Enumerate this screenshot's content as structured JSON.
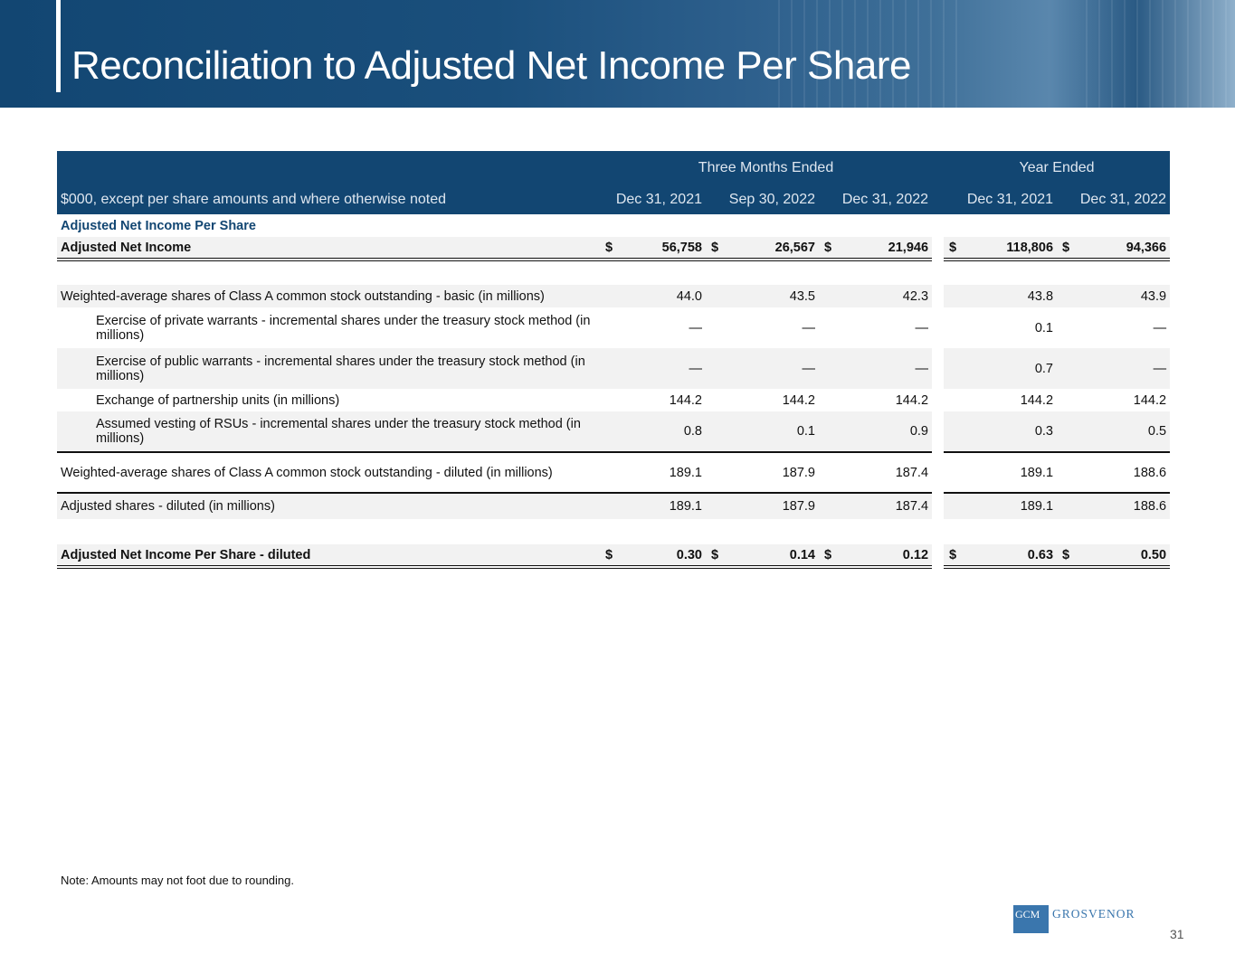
{
  "title": "Reconciliation to Adjusted Net Income Per Share",
  "header": {
    "group1": "Three Months Ended",
    "group2": "Year Ended",
    "unit_label": "$000, except per share amounts and where otherwise noted",
    "columns": [
      "Dec 31, 2021",
      "Sep 30, 2022",
      "Dec 31, 2022",
      "Dec 31, 2021",
      "Dec 31, 2022"
    ]
  },
  "section": "Adjusted Net Income Per Share",
  "rows": [
    {
      "label": "Adjusted Net Income",
      "values": [
        "56,758",
        "26,567",
        "21,946",
        "118,806",
        "94,366"
      ],
      "currency": "$",
      "bold": true,
      "shade": true,
      "border": "dbl",
      "h": "r1"
    },
    {
      "spacer": true
    },
    {
      "label": "Weighted-average shares of Class A common stock outstanding - basic (in millions)",
      "values": [
        "44.0",
        "43.5",
        "42.3",
        "43.8",
        "43.9"
      ],
      "shade": true,
      "h": "r1"
    },
    {
      "label": "Exercise of private warrants - incremental shares under the treasury stock method (in millions)",
      "values": [
        "—",
        "—",
        "—",
        "0.1",
        "—"
      ],
      "indent": true,
      "h": "r2"
    },
    {
      "label": "Exercise of public warrants - incremental shares under the treasury stock method (in millions)",
      "values": [
        "—",
        "—",
        "—",
        "0.7",
        "—"
      ],
      "indent": true,
      "shade": true,
      "h": "r2"
    },
    {
      "label": "Exchange of partnership units (in millions)",
      "values": [
        "144.2",
        "144.2",
        "144.2",
        "144.2",
        "144.2"
      ],
      "indent": true,
      "h": "r1"
    },
    {
      "label": "Assumed vesting of RSUs - incremental shares under the treasury stock method (in millions)",
      "values": [
        "0.8",
        "0.1",
        "0.9",
        "0.3",
        "0.5"
      ],
      "indent": true,
      "shade": true,
      "border": "sgl",
      "h": "r2"
    },
    {
      "label": "Weighted-average shares of Class A common stock outstanding - diluted (in millions)",
      "values": [
        "189.1",
        "187.9",
        "187.4",
        "189.1",
        "188.6"
      ],
      "border": "sgl",
      "h": "r2"
    },
    {
      "label": " Adjusted shares - diluted (in millions)",
      "values": [
        "189.1",
        "187.9",
        "187.4",
        "189.1",
        "188.6"
      ],
      "shade": true,
      "h": "r3"
    },
    {
      "spacer": true
    },
    {
      "label": "Adjusted Net Income Per Share - diluted",
      "values": [
        "0.30",
        "0.14",
        "0.12",
        "0.63",
        "0.50"
      ],
      "currency": "$",
      "bold": true,
      "shade": true,
      "border": "dbl",
      "h": "r1"
    }
  ],
  "note": "Note: Amounts may not foot due to rounding.",
  "logo": {
    "box": "GCM",
    "word": "GROSVENOR"
  },
  "page_number": "31"
}
